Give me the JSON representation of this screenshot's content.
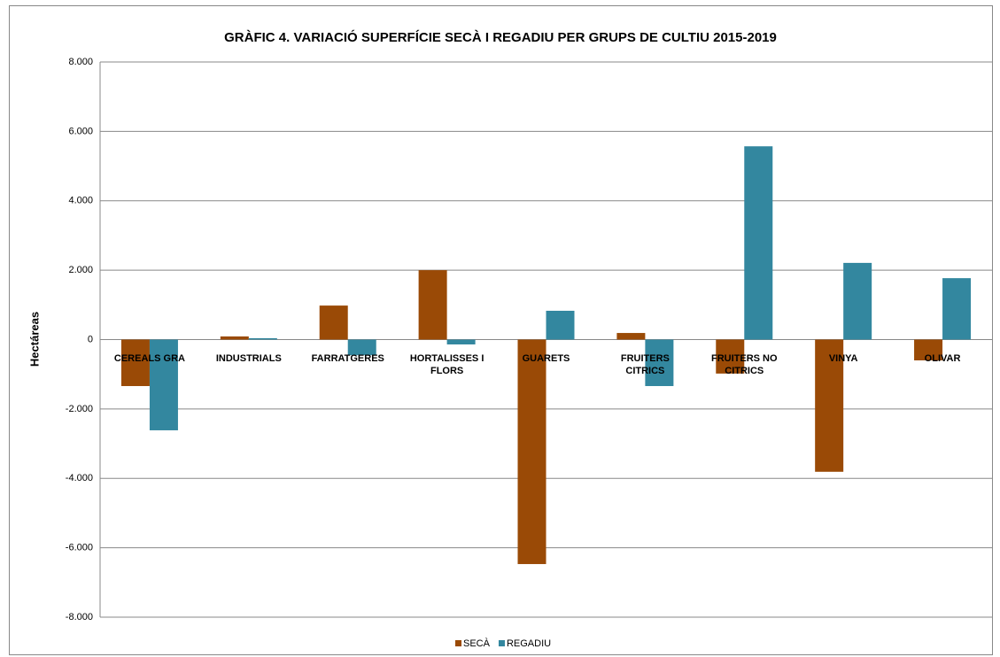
{
  "chart_data": {
    "type": "bar",
    "title": "GRÀFIC 4. VARIACIÓ SUPERFÍCIE SECÀ I REGADIU PER GRUPS DE CULTIU 2015-2019",
    "y_label": "Hectáreas",
    "categories": [
      "CEREALS GRA",
      "INDUSTRIALS",
      "FARRATGERES",
      "HORTALISSES I FLORS",
      "GUARETS",
      "FRUITERS CITRICS",
      "FRUITERS NO CITRICS",
      "VINYA",
      "OLIVAR"
    ],
    "series": [
      {
        "name": "SECÀ",
        "color": "#9a4a06",
        "values": [
          -1340,
          90,
          980,
          2000,
          -6470,
          190,
          -980,
          -3810,
          -600
        ]
      },
      {
        "name": "REGADIU",
        "color": "#33879f",
        "values": [
          -2615,
          40,
          -450,
          -140,
          830,
          -1340,
          5570,
          2210,
          1770
        ]
      }
    ],
    "ylim": [
      -8000,
      8000
    ],
    "yticks": [
      {
        "value": -8000,
        "label": "-8.000"
      },
      {
        "value": -6000,
        "label": "-6.000"
      },
      {
        "value": -4000,
        "label": "-4.000"
      },
      {
        "value": -2000,
        "label": "-2.000"
      },
      0,
      {
        "value": 2000,
        "label": "2.000"
      },
      {
        "value": 4000,
        "label": "4.000"
      },
      {
        "value": 6000,
        "label": "6.000"
      },
      {
        "value": 8000,
        "label": "8.000"
      }
    ],
    "grid": true,
    "legend": "bottom"
  }
}
